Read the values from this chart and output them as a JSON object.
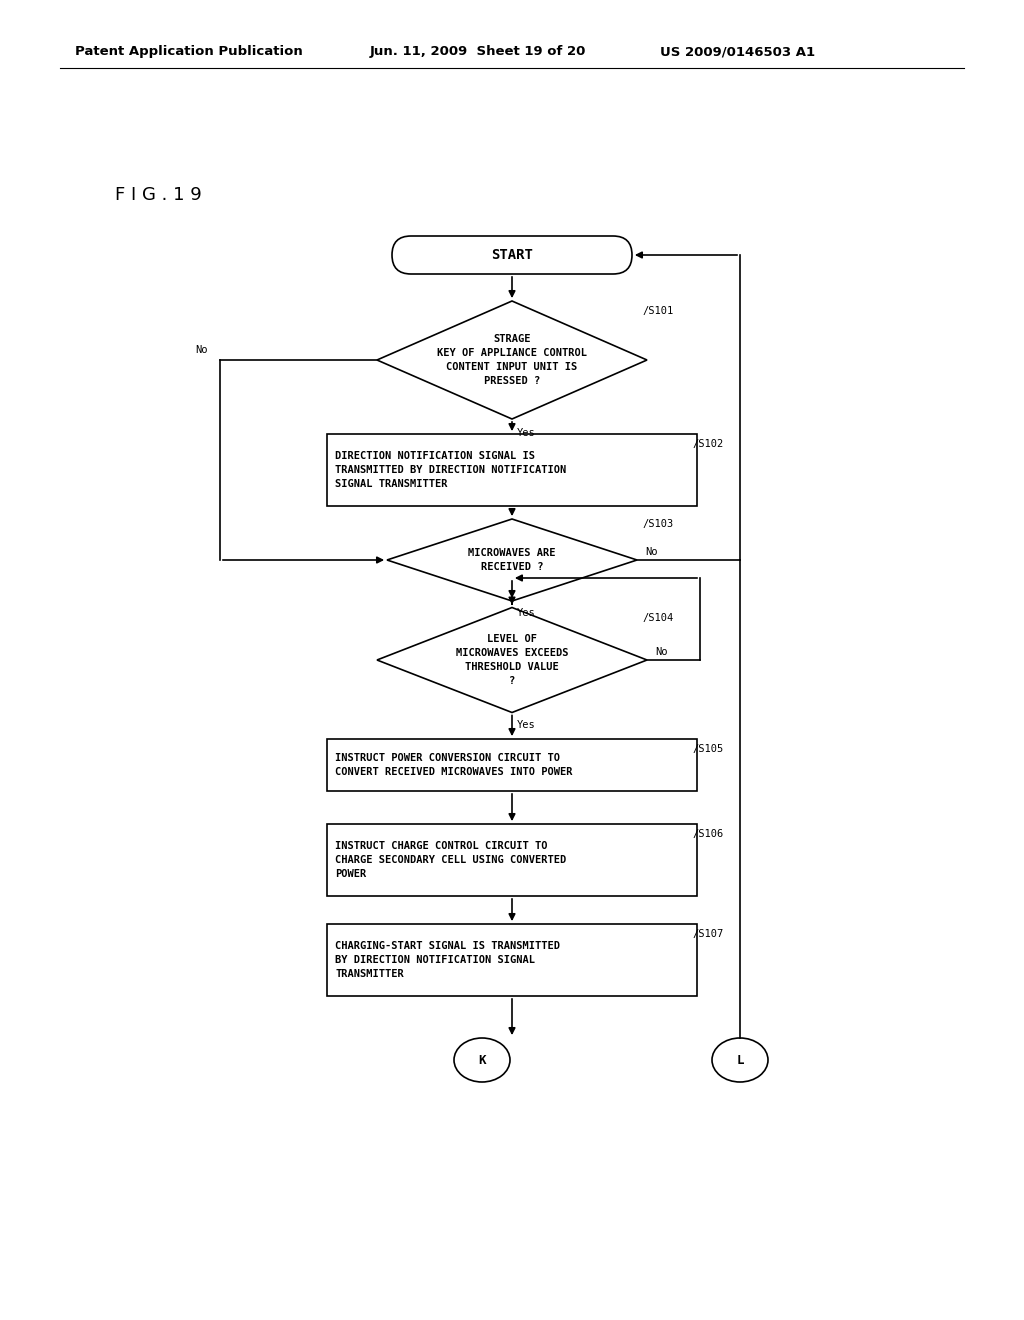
{
  "bg_color": "#ffffff",
  "header_left": "Patent Application Publication",
  "header_mid": "Jun. 11, 2009  Sheet 19 of 20",
  "header_right": "US 2009/0146503 A1",
  "fig_label": "F I G . 1 9",
  "lw": 1.2,
  "start_label": "START",
  "s101_label": "STRAGE\nKEY OF APPLIANCE CONTROL\nCONTENT INPUT UNIT IS\nPRESSED ?",
  "s101_step": "/S101",
  "s102_label": "DIRECTION NOTIFICATION SIGNAL IS\nTRANSMITTED BY DIRECTION NOTIFICATION\nSIGNAL TRANSMITTER",
  "s102_step": "/S102",
  "s103_label": "MICROWAVES ARE\nRECEIVED ?",
  "s103_step": "/S103",
  "s104_label": "LEVEL OF\nMICROWAVES EXCEEDS\nTHRESHOLD VALUE\n?",
  "s104_step": "/S104",
  "s105_label": "INSTRUCT POWER CONVERSION CIRCUIT TO\nCONVERT RECEIVED MICROWAVES INTO POWER",
  "s105_step": "/S105",
  "s106_label": "INSTRUCT CHARGE CONTROL CIRCUIT TO\nCHARGE SECONDARY CELL USING CONVERTED\nPOWER",
  "s106_step": "/S106",
  "s107_label": "CHARGING-START SIGNAL IS TRANSMITTED\nBY DIRECTION NOTIFICATION SIGNAL\nTRANSMITTER",
  "s107_step": "/S107",
  "k_label": "K",
  "l_label": "L"
}
